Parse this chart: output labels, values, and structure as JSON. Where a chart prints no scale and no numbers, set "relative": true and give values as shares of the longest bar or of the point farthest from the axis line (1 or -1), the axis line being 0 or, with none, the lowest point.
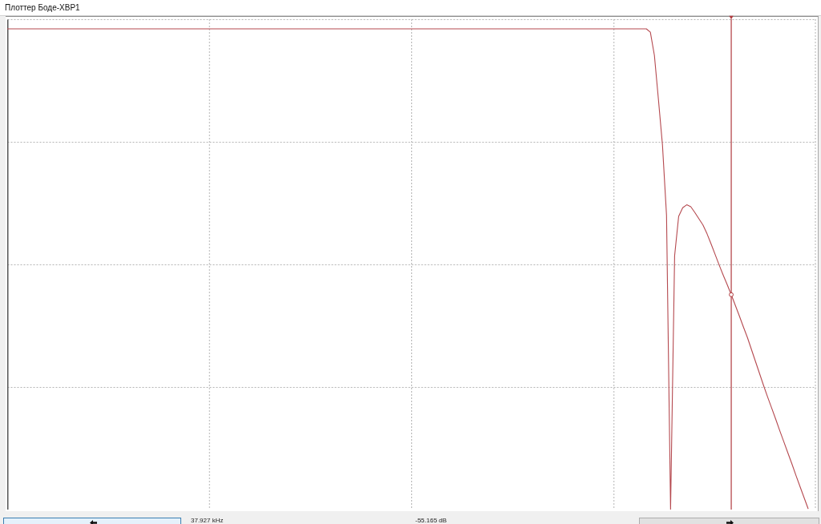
{
  "chart_data": {
    "type": "line",
    "title": "Плоттер Боде-XBP1",
    "relative": true,
    "grid": true,
    "categories": [
      null,
      null,
      null,
      null,
      null,
      null,
      null,
      null,
      null,
      null,
      null,
      null,
      null,
      null,
      null,
      null,
      null,
      null,
      null,
      null,
      null,
      null,
      null,
      null,
      null,
      null,
      null,
      null,
      null,
      null,
      null,
      null,
      null,
      null,
      null,
      null,
      null,
      null,
      null,
      null,
      null,
      null,
      null,
      null,
      null,
      null,
      null,
      null,
      null,
      null,
      null,
      null,
      null,
      null,
      null,
      null,
      null,
      null,
      null,
      null,
      null,
      null,
      null,
      null,
      null,
      null,
      null,
      null,
      null,
      null,
      null,
      null,
      null,
      null,
      null,
      null,
      null,
      null,
      null,
      null,
      null,
      null,
      null,
      null,
      null,
      null,
      null,
      null,
      null,
      null,
      null,
      null,
      null,
      null,
      null,
      null,
      null,
      null,
      null,
      null,
      null,
      null,
      null,
      null,
      null,
      null,
      null,
      null,
      null,
      null,
      null,
      null,
      null,
      null,
      null,
      null,
      null,
      null,
      null,
      null,
      null,
      null,
      null,
      null,
      null,
      null,
      null,
      null,
      null,
      null,
      null,
      null,
      null,
      null,
      null,
      null,
      null,
      null,
      null,
      null,
      null,
      null,
      null,
      null,
      null,
      null,
      null,
      null,
      null,
      null,
      null,
      null,
      null,
      null,
      null,
      null,
      null,
      null,
      null,
      null,
      null,
      null,
      null,
      null,
      null,
      null,
      null,
      null,
      null,
      null,
      null,
      null,
      null,
      null,
      null,
      null,
      null,
      null,
      null,
      null,
      null,
      null,
      null,
      null,
      null,
      null,
      null,
      null,
      null,
      null,
      null,
      null,
      null,
      null,
      null,
      null,
      null,
      null,
      null,
      null,
      null
    ],
    "series": [
      {
        "color": "#b5494f",
        "values": [
          1,
          1,
          1,
          1,
          1,
          1,
          1,
          1,
          1,
          1,
          1,
          1,
          1,
          1,
          1,
          1,
          1,
          1,
          1,
          1,
          1,
          1,
          1,
          1,
          1,
          1,
          1,
          1,
          1,
          1,
          1,
          1,
          1,
          1,
          1,
          1,
          1,
          1,
          1,
          1,
          1,
          1,
          1,
          1,
          1,
          1,
          1,
          1,
          1,
          1,
          1,
          1,
          1,
          1,
          1,
          1,
          1,
          1,
          1,
          1,
          1,
          1,
          1,
          1,
          1,
          1,
          1,
          1,
          1,
          1,
          1,
          1,
          1,
          1,
          1,
          1,
          1,
          1,
          1,
          1,
          1,
          1,
          1,
          1,
          1,
          1,
          1,
          1,
          1,
          1,
          1,
          1,
          1,
          1,
          1,
          1,
          1,
          1,
          1,
          1,
          1,
          1,
          1,
          1,
          1,
          1,
          1,
          1,
          1,
          1,
          1,
          1,
          1,
          1,
          1,
          1,
          1,
          1,
          1,
          1,
          1,
          1,
          1,
          1,
          1,
          1,
          1,
          1,
          1,
          1,
          1,
          1,
          1,
          1,
          1,
          1,
          1,
          1,
          1,
          1,
          1,
          1,
          1,
          1,
          1,
          1,
          1,
          1,
          1,
          1,
          1,
          1,
          1,
          1,
          1,
          1,
          1,
          1,
          1,
          0.993,
          0.945,
          0.853,
          0.758,
          0.612,
          0,
          0.528,
          0.61,
          0.628,
          0.634,
          0.63,
          0.618,
          0.605,
          0.592,
          0.574,
          0.553,
          0.531,
          0.509,
          0.488,
          0.468,
          0.447,
          0.425,
          0.403,
          0.38,
          0.358,
          0.333,
          0.308,
          0.283,
          0.258,
          0.234,
          0.211,
          0.188,
          0.164,
          0.141,
          0.118,
          0.095,
          0.071,
          0.048,
          0.025,
          0.002,
          null,
          null
        ]
      }
    ],
    "annotations": [
      "37.927 kHz",
      "-55.165 dB"
    ]
  }
}
